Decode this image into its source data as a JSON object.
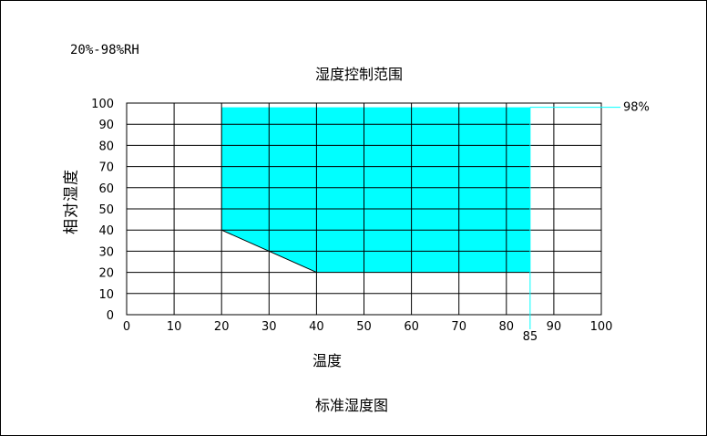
{
  "header": {
    "range_label": "20%-98%RH"
  },
  "footer": {
    "caption": "标准湿度图"
  },
  "chart_data": {
    "type": "area",
    "title": "湿度控制范围",
    "xlabel": "温度",
    "ylabel": "相对湿度",
    "xlim": [
      0,
      100
    ],
    "ylim": [
      0,
      100
    ],
    "x_ticks": [
      0,
      10,
      20,
      30,
      40,
      50,
      60,
      70,
      80,
      90,
      100
    ],
    "y_ticks": [
      0,
      10,
      20,
      30,
      40,
      50,
      60,
      70,
      80,
      90,
      100
    ],
    "grid": true,
    "region": {
      "fill": "#00ffff",
      "points": [
        {
          "x": 20,
          "y": 98
        },
        {
          "x": 85,
          "y": 98
        },
        {
          "x": 85,
          "y": 20
        },
        {
          "x": 40,
          "y": 20
        },
        {
          "x": 20,
          "y": 40
        }
      ]
    },
    "annotations": [
      {
        "axis": "y",
        "value": 98,
        "label": "98%"
      },
      {
        "axis": "x",
        "value": 85,
        "label": "85"
      }
    ],
    "colors": {
      "region_fill": "#00ffff",
      "marker_line": "#00ffff",
      "grid": "#000000"
    }
  }
}
